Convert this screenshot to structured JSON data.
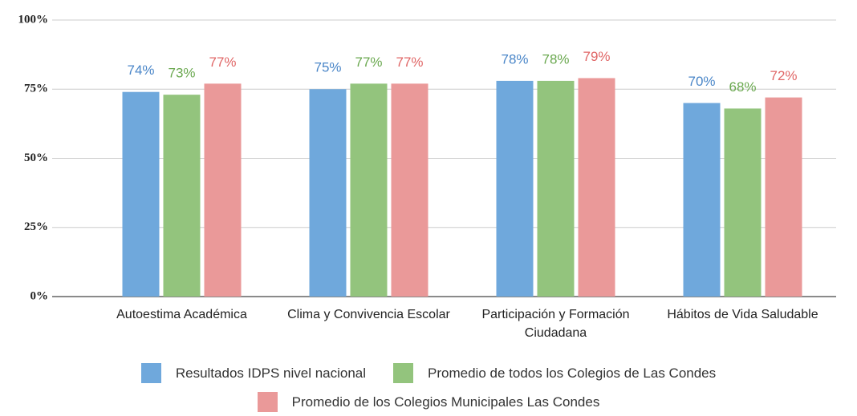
{
  "chart_data": {
    "type": "bar",
    "categories": [
      "Autoestima Académica",
      "Clima y Convivencia Escolar",
      "Participación y Formación Ciudadana",
      "Hábitos de Vida Saludable"
    ],
    "series": [
      {
        "name": "Resultados IDPS nivel nacional",
        "color": "#6fa8dc",
        "label_color": "#4a86c8",
        "values": [
          74,
          75,
          78,
          70
        ],
        "value_labels": [
          "74%",
          "75%",
          "78%",
          "70%"
        ]
      },
      {
        "name": "Promedio de todos los Colegios de Las Condes",
        "color": "#93c47d",
        "label_color": "#6aa84f",
        "values": [
          73,
          77,
          78,
          68
        ],
        "value_labels": [
          "73%",
          "77%",
          "78%",
          "68%"
        ]
      },
      {
        "name": "Promedio de los Colegios Municipales Las Condes",
        "color": "#ea9999",
        "label_color": "#e06666",
        "values": [
          77,
          77,
          79,
          72
        ],
        "value_labels": [
          "77%",
          "77%",
          "79%",
          "72%"
        ]
      }
    ],
    "ylim": [
      0,
      100
    ],
    "yticks": [
      {
        "value": 0,
        "label": "0%"
      },
      {
        "value": 25,
        "label": "25%"
      },
      {
        "value": 50,
        "label": "50%"
      },
      {
        "value": 75,
        "label": "75%"
      },
      {
        "value": 100,
        "label": "100%"
      }
    ],
    "grid": true,
    "legend": "bottom"
  }
}
